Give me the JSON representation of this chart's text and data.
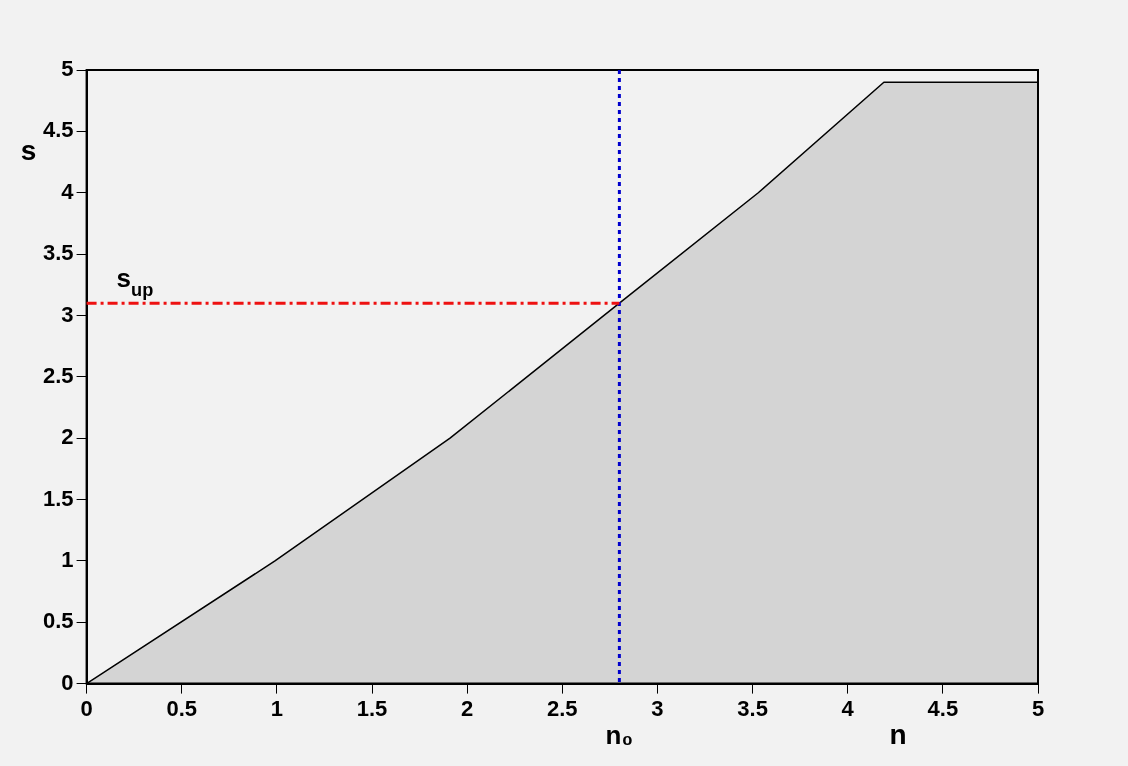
{
  "chart_data": {
    "type": "area",
    "xlabel": "n",
    "ylabel": "s",
    "x": [
      0,
      0.99,
      1.91,
      2.8,
      3.53,
      4.19,
      5
    ],
    "series": [
      {
        "color": "#000000",
        "values": [
          0,
          1,
          2,
          3.1,
          4,
          4.9,
          4.9
        ]
      }
    ],
    "xlim": [
      0,
      5
    ],
    "xticks": [
      0,
      0.5,
      1,
      1.5,
      2,
      2.5,
      3,
      3.5,
      4,
      4.5,
      5
    ],
    "ylim": [
      0,
      5
    ],
    "yticks": [
      0,
      0.5,
      1,
      1.5,
      2,
      2.5,
      3,
      3.5,
      4,
      4.5,
      5
    ],
    "ref_lines": [
      {
        "axis": "x",
        "value": 2.8,
        "label": "n₀",
        "color": "#0000cc",
        "line_style": "dotted"
      },
      {
        "axis": "y",
        "value": 3.1,
        "label": "s$_{up}$",
        "color": "#ee1111",
        "line_style": "dashed"
      }
    ],
    "grid": false,
    "legend": false,
    "marker": "none"
  }
}
